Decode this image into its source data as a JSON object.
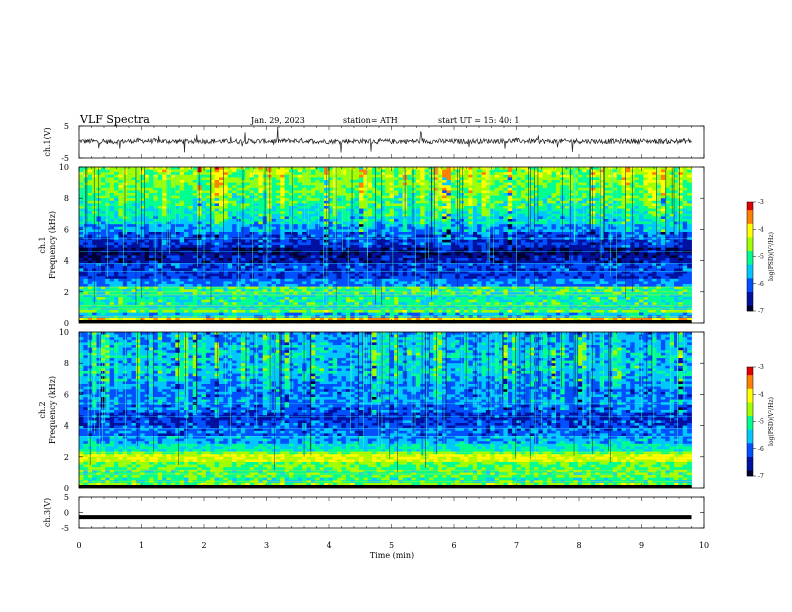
{
  "header": {
    "title": "VLF  Spectra",
    "date": "Jan. 29, 2023",
    "station": "station= ATH",
    "start": "start  UT  =    15: 40: 1"
  },
  "colors": {
    "axis": "#000000",
    "noise": "#222222",
    "colormap": [
      "#000030",
      "#0010a0",
      "#0050ff",
      "#00c8ff",
      "#00ff90",
      "#a0ff00",
      "#ffff00",
      "#ff8000",
      "#e00000",
      "#ffffff"
    ]
  },
  "chart_data": [
    {
      "type": "line",
      "panel": "ch1-waveform",
      "ylabel": "ch.1(V)",
      "ylim": [
        -5,
        5
      ],
      "yticks": [
        "5",
        "-5"
      ],
      "xlim": [
        0,
        10
      ],
      "x": [
        0,
        0.5,
        1,
        1.5,
        2,
        2.5,
        3,
        3.5,
        4,
        4.5,
        5,
        5.5,
        6,
        6.5,
        7,
        7.5,
        8,
        8.5,
        9,
        9.5,
        9.8
      ],
      "y": [
        0.3,
        0.1,
        0.4,
        0.2,
        0.3,
        0.2,
        0.3,
        0.4,
        0.2,
        0.3,
        0.2,
        0.3,
        0.2,
        0.3,
        0.4,
        0.2,
        0.3,
        0.2,
        0.3,
        0.2,
        0.3
      ]
    },
    {
      "type": "heatmap",
      "panel": "ch1-spectrogram",
      "ylabel": "ch.1\nFrequency  (kHz)",
      "ylim": [
        0,
        10
      ],
      "yticks": [
        "0",
        "2",
        "4",
        "6",
        "8",
        "10"
      ],
      "xlim": [
        0,
        9.8
      ],
      "log_psd_by_freq_khz": [
        {
          "f": 0.25,
          "v": -3.9
        },
        {
          "f": 0.5,
          "v": -5.5
        },
        {
          "f": 0.75,
          "v": -4.6
        },
        {
          "f": 1.0,
          "v": -5.2
        },
        {
          "f": 1.25,
          "v": -5.0
        },
        {
          "f": 1.5,
          "v": -5.1
        },
        {
          "f": 1.75,
          "v": -5.3
        },
        {
          "f": 2.0,
          "v": -5.0
        },
        {
          "f": 2.25,
          "v": -4.9
        },
        {
          "f": 2.5,
          "v": -5.8
        },
        {
          "f": 3.0,
          "v": -6.2
        },
        {
          "f": 3.5,
          "v": -6.1
        },
        {
          "f": 4.0,
          "v": -6.5
        },
        {
          "f": 4.5,
          "v": -6.7
        },
        {
          "f": 5.0,
          "v": -6.3
        },
        {
          "f": 5.5,
          "v": -6.1
        },
        {
          "f": 6.0,
          "v": -5.7
        },
        {
          "f": 6.5,
          "v": -5.4
        },
        {
          "f": 7.0,
          "v": -5.2
        },
        {
          "f": 7.5,
          "v": -5.0
        },
        {
          "f": 8.0,
          "v": -4.9
        },
        {
          "f": 8.5,
          "v": -4.8
        },
        {
          "f": 9.0,
          "v": -4.7
        },
        {
          "f": 9.5,
          "v": -4.6
        },
        {
          "f": 10.0,
          "v": -4.5
        }
      ],
      "colorbar": {
        "label": "log(PSD)(V²/Hz)",
        "range": [
          -7,
          -3
        ],
        "ticks": [
          "-3",
          "-4",
          "-5",
          "-6",
          "-7"
        ]
      }
    },
    {
      "type": "heatmap",
      "panel": "ch2-spectrogram",
      "ylabel": "ch.2\nFrequency  (kHz)",
      "ylim": [
        0,
        10
      ],
      "yticks": [
        "0",
        "2",
        "4",
        "6",
        "8",
        "10"
      ],
      "xlim": [
        0,
        9.8
      ],
      "log_psd_by_freq_khz": [
        {
          "f": 0.25,
          "v": -4.6
        },
        {
          "f": 0.5,
          "v": -5.0
        },
        {
          "f": 0.75,
          "v": -4.8
        },
        {
          "f": 1.0,
          "v": -4.9
        },
        {
          "f": 1.25,
          "v": -4.8
        },
        {
          "f": 1.5,
          "v": -4.7
        },
        {
          "f": 1.75,
          "v": -4.3
        },
        {
          "f": 2.0,
          "v": -4.2
        },
        {
          "f": 2.25,
          "v": -4.7
        },
        {
          "f": 2.5,
          "v": -5.2
        },
        {
          "f": 3.0,
          "v": -5.6
        },
        {
          "f": 3.5,
          "v": -5.9
        },
        {
          "f": 4.0,
          "v": -6.1
        },
        {
          "f": 4.5,
          "v": -6.3
        },
        {
          "f": 5.0,
          "v": -6.0
        },
        {
          "f": 5.5,
          "v": -5.8
        },
        {
          "f": 6.0,
          "v": -5.9
        },
        {
          "f": 6.5,
          "v": -5.8
        },
        {
          "f": 7.0,
          "v": -5.6
        },
        {
          "f": 7.5,
          "v": -5.5
        },
        {
          "f": 8.0,
          "v": -5.6
        },
        {
          "f": 8.5,
          "v": -5.5
        },
        {
          "f": 9.0,
          "v": -5.6
        },
        {
          "f": 9.5,
          "v": -5.7
        },
        {
          "f": 10.0,
          "v": -5.9
        }
      ],
      "colorbar": {
        "label": "log(PSD)(V²/Hz)",
        "range": [
          -7,
          -3
        ],
        "ticks": [
          "-3",
          "-4",
          "-5",
          "-6",
          "-7"
        ]
      }
    },
    {
      "type": "line",
      "panel": "ch3-waveform",
      "ylabel": "ch.3(V)",
      "ylim": [
        -5,
        5
      ],
      "yticks": [
        "5",
        "0",
        "-5"
      ],
      "xlim": [
        0,
        10
      ],
      "x": [
        0,
        9.8
      ],
      "y": [
        -1.5,
        -1.5
      ]
    }
  ],
  "xaxis": {
    "label": "Time  (min)",
    "ticks": [
      "0",
      "1",
      "2",
      "3",
      "4",
      "5",
      "6",
      "7",
      "8",
      "9",
      "10"
    ]
  }
}
